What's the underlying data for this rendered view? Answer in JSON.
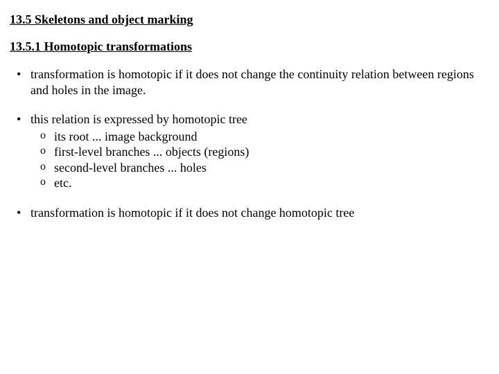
{
  "heading_main": "13.5 Skeletons and object marking",
  "heading_sub": "13.5.1 Homotopic transformations",
  "bullets": [
    {
      "text": "transformation is homotopic if it does not change the continuity relation between regions and holes in the image."
    },
    {
      "text": "this relation is expressed by homotopic tree",
      "sub": [
        "its root ... image background",
        "first-level branches ... objects (regions)",
        "second-level branches ... holes",
        "etc."
      ]
    },
    {
      "text": "transformation is homotopic if it does not change homotopic tree"
    }
  ]
}
